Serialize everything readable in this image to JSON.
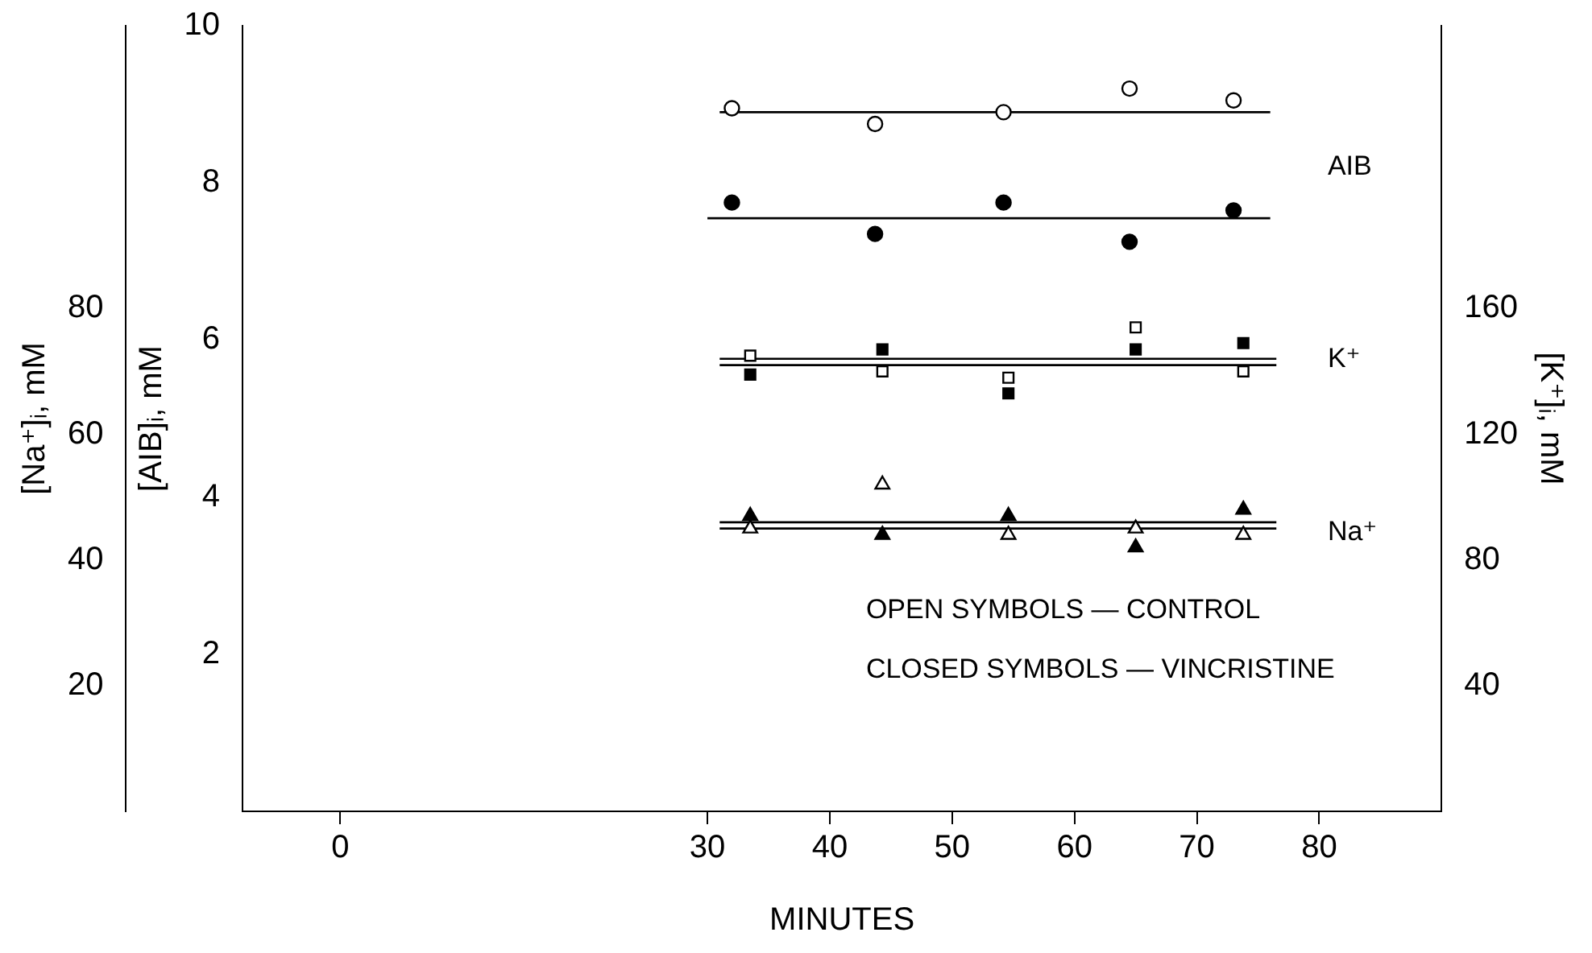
{
  "chart_data": {
    "type": "scatter",
    "xlabel": "MINUTES",
    "ylabel": "[AIB]ᵢ, mM",
    "y2label": "[K⁺]ᵢ, mM",
    "y3label": "[Na⁺]ᵢ, mM",
    "xlim": [
      -8,
      90
    ],
    "xticks": [
      0,
      30,
      40,
      50,
      60,
      70,
      80
    ],
    "ylim": [
      0,
      10
    ],
    "yticks": [
      2,
      4,
      6,
      8,
      10
    ],
    "y2lim": [
      0,
      250
    ],
    "y2ticks": [
      40,
      80,
      120,
      160
    ],
    "y3lim": [
      0,
      125
    ],
    "y3ticks": [
      20,
      40,
      60,
      80
    ],
    "grid": false,
    "legend": false,
    "series": [
      {
        "color": "#ffffff",
        "marker": "circle",
        "x": [
          32,
          43.7,
          54.2,
          64.5,
          73
        ],
        "values": [
          8.95,
          8.75,
          8.9,
          9.2,
          9.05
        ]
      },
      {
        "color": "#000000",
        "marker": "circle",
        "x": [
          32,
          43.7,
          54.2,
          64.5,
          73
        ],
        "values": [
          7.75,
          7.35,
          7.75,
          7.25,
          7.65
        ]
      },
      {
        "type": "line",
        "color": "#000000",
        "marker": "none",
        "x": [
          31,
          76
        ],
        "values": [
          8.9,
          8.9
        ]
      },
      {
        "type": "line",
        "color": "#000000",
        "marker": "none",
        "x": [
          30,
          76
        ],
        "values": [
          7.55,
          7.55
        ]
      },
      {
        "axis": "y2",
        "color": "#ffffff",
        "marker": "square",
        "x": [
          33.5,
          44.3,
          54.6,
          65,
          73.8
        ],
        "values": [
          145,
          140,
          138,
          154,
          140
        ]
      },
      {
        "axis": "y2",
        "color": "#000000",
        "marker": "square",
        "x": [
          33.5,
          44.3,
          54.6,
          65,
          73.8
        ],
        "values": [
          139,
          147,
          133,
          147,
          149
        ]
      },
      {
        "axis": "y2",
        "type": "line",
        "color": "#000000",
        "marker": "none",
        "x": [
          31,
          76.5
        ],
        "values": [
          144,
          144
        ]
      },
      {
        "axis": "y2",
        "type": "line",
        "color": "#000000",
        "marker": "none",
        "x": [
          31,
          76.5
        ],
        "values": [
          142,
          142
        ]
      },
      {
        "axis": "y3",
        "color": "#ffffff",
        "marker": "triangle",
        "x": [
          33.5,
          44.3,
          54.6,
          65,
          73.8
        ],
        "values": [
          45,
          52,
          44,
          45,
          44
        ]
      },
      {
        "axis": "y3",
        "color": "#000000",
        "marker": "triangle",
        "x": [
          33.5,
          44.3,
          54.6,
          65,
          73.8
        ],
        "values": [
          47,
          44,
          47,
          42,
          48
        ]
      },
      {
        "axis": "y3",
        "type": "line",
        "color": "#000000",
        "marker": "none",
        "x": [
          31,
          76.5
        ],
        "values": [
          46,
          46
        ]
      },
      {
        "axis": "y3",
        "type": "line",
        "color": "#000000",
        "marker": "none",
        "x": [
          31,
          76.5
        ],
        "values": [
          45,
          45
        ]
      }
    ],
    "annotations": [
      "AIB",
      "K⁺",
      "Na⁺",
      "OPEN SYMBOLS — CONTROL",
      "CLOSED SYMBOLS — VINCRISTINE"
    ]
  }
}
